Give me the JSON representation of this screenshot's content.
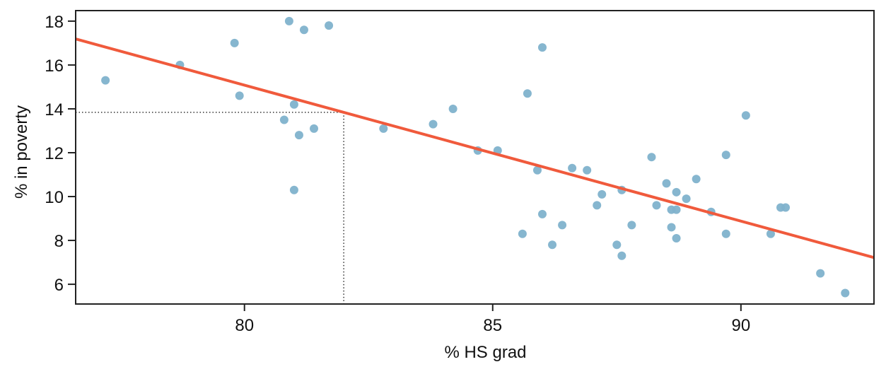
{
  "chart_data": {
    "type": "scatter",
    "title": "",
    "xlabel": "% HS grad",
    "ylabel": "% in poverty",
    "xlim": [
      76.6,
      92.68
    ],
    "ylim": [
      5.1,
      18.48
    ],
    "xticks": [
      80,
      85,
      90
    ],
    "yticks": [
      6,
      8,
      10,
      12,
      14,
      16,
      18
    ],
    "grid": false,
    "legend": null,
    "colors": {
      "points": "#7fb2cc",
      "line": "#f05a3c",
      "axis": "#222222",
      "guide": "#333333"
    },
    "points": [
      {
        "x": 77.2,
        "y": 15.3
      },
      {
        "x": 78.7,
        "y": 16.0
      },
      {
        "x": 79.8,
        "y": 17.0
      },
      {
        "x": 79.9,
        "y": 14.6
      },
      {
        "x": 80.9,
        "y": 18.0
      },
      {
        "x": 81.2,
        "y": 17.6
      },
      {
        "x": 81.7,
        "y": 17.8
      },
      {
        "x": 81.0,
        "y": 14.2
      },
      {
        "x": 80.8,
        "y": 13.5
      },
      {
        "x": 81.1,
        "y": 12.8
      },
      {
        "x": 81.4,
        "y": 13.1
      },
      {
        "x": 81.0,
        "y": 10.3
      },
      {
        "x": 82.8,
        "y": 13.1
      },
      {
        "x": 83.8,
        "y": 13.3
      },
      {
        "x": 84.2,
        "y": 14.0
      },
      {
        "x": 84.7,
        "y": 12.1
      },
      {
        "x": 85.1,
        "y": 12.1
      },
      {
        "x": 85.7,
        "y": 14.7
      },
      {
        "x": 86.0,
        "y": 16.8
      },
      {
        "x": 85.9,
        "y": 11.2
      },
      {
        "x": 86.6,
        "y": 11.3
      },
      {
        "x": 86.9,
        "y": 11.2
      },
      {
        "x": 87.2,
        "y": 10.1
      },
      {
        "x": 87.1,
        "y": 9.6
      },
      {
        "x": 87.6,
        "y": 10.3
      },
      {
        "x": 86.0,
        "y": 9.2
      },
      {
        "x": 85.6,
        "y": 8.3
      },
      {
        "x": 86.4,
        "y": 8.7
      },
      {
        "x": 86.2,
        "y": 7.8
      },
      {
        "x": 87.5,
        "y": 7.8
      },
      {
        "x": 87.6,
        "y": 7.3
      },
      {
        "x": 87.8,
        "y": 8.7
      },
      {
        "x": 88.2,
        "y": 11.8
      },
      {
        "x": 88.3,
        "y": 9.6
      },
      {
        "x": 88.5,
        "y": 10.6
      },
      {
        "x": 88.7,
        "y": 10.2
      },
      {
        "x": 88.6,
        "y": 9.4
      },
      {
        "x": 88.7,
        "y": 9.4
      },
      {
        "x": 88.9,
        "y": 9.9
      },
      {
        "x": 89.1,
        "y": 10.8
      },
      {
        "x": 88.6,
        "y": 8.6
      },
      {
        "x": 88.7,
        "y": 8.1
      },
      {
        "x": 89.4,
        "y": 9.3
      },
      {
        "x": 89.7,
        "y": 11.9
      },
      {
        "x": 89.7,
        "y": 8.3
      },
      {
        "x": 90.1,
        "y": 13.7
      },
      {
        "x": 90.6,
        "y": 8.3
      },
      {
        "x": 90.8,
        "y": 9.5
      },
      {
        "x": 90.9,
        "y": 9.5
      },
      {
        "x": 91.6,
        "y": 6.5
      },
      {
        "x": 92.1,
        "y": 5.6
      }
    ],
    "regression_line": {
      "intercept": 64.68,
      "slope": -0.62,
      "x_from": 76.6,
      "x_to": 92.68
    },
    "annotations": [
      {
        "type": "dotted-guide",
        "x": 82.0,
        "y": 13.84,
        "description": "predicted % in poverty at 82% HS grad"
      }
    ]
  }
}
